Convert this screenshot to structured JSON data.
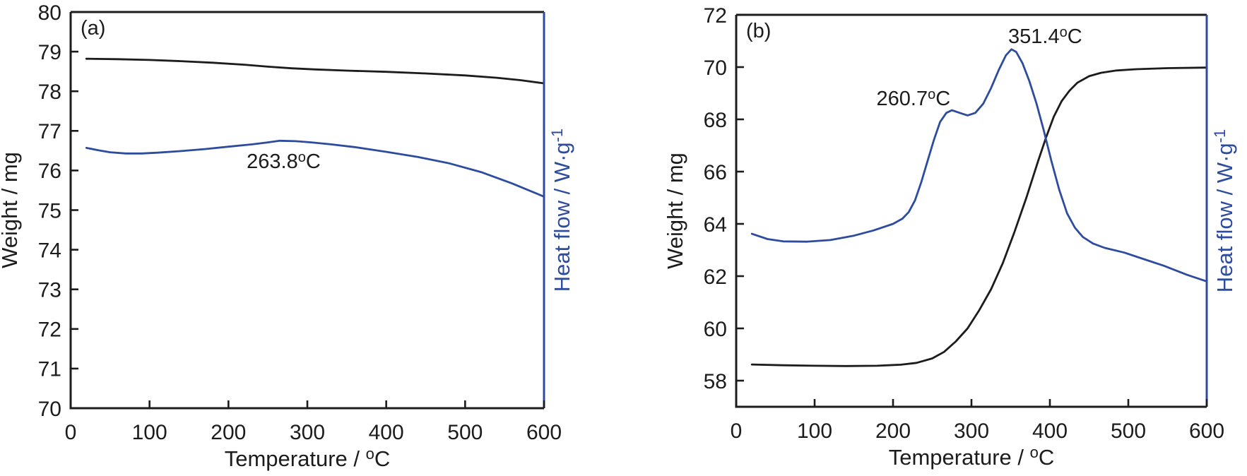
{
  "figure": {
    "background": "#ffffff",
    "text_color": "#1c1c1c",
    "accent_blue": "#2d4c9e"
  },
  "chart_data": [
    {
      "type": "line",
      "panel_label": "(a)",
      "xlabel": "Temperature / °C",
      "ylabel_left": "Weight / mg",
      "ylabel_right": "Heat flow / W·g⁻¹",
      "xlim": [
        0,
        600
      ],
      "ylim": [
        70,
        80
      ],
      "x_ticks": [
        0,
        100,
        200,
        300,
        400,
        500,
        600
      ],
      "y_ticks": [
        70,
        71,
        72,
        73,
        74,
        75,
        76,
        77,
        78,
        79,
        80
      ],
      "right_axis_ticks": "none",
      "grid": "off",
      "legend": "none",
      "series": [
        {
          "name": "TG weight curve",
          "color": "#1c1c1c",
          "axis": "left",
          "points": [
            [
              20,
              78.82
            ],
            [
              60,
              78.81
            ],
            [
              100,
              78.79
            ],
            [
              140,
              78.76
            ],
            [
              180,
              78.72
            ],
            [
              220,
              78.67
            ],
            [
              250,
              78.62
            ],
            [
              280,
              78.58
            ],
            [
              310,
              78.55
            ],
            [
              350,
              78.52
            ],
            [
              400,
              78.49
            ],
            [
              450,
              78.45
            ],
            [
              500,
              78.4
            ],
            [
              540,
              78.34
            ],
            [
              570,
              78.28
            ],
            [
              600,
              78.2
            ]
          ]
        },
        {
          "name": "DSC heat flow curve",
          "color": "#2d4c9e",
          "axis": "right",
          "points": [
            [
              20,
              76.57
            ],
            [
              35,
              76.51
            ],
            [
              50,
              76.46
            ],
            [
              70,
              76.43
            ],
            [
              90,
              76.43
            ],
            [
              110,
              76.45
            ],
            [
              140,
              76.49
            ],
            [
              170,
              76.54
            ],
            [
              200,
              76.6
            ],
            [
              230,
              76.66
            ],
            [
              250,
              76.71
            ],
            [
              265,
              76.75
            ],
            [
              285,
              76.74
            ],
            [
              305,
              76.71
            ],
            [
              330,
              76.66
            ],
            [
              360,
              76.59
            ],
            [
              400,
              76.47
            ],
            [
              440,
              76.34
            ],
            [
              480,
              76.18
            ],
            [
              520,
              75.96
            ],
            [
              560,
              75.67
            ],
            [
              600,
              75.34
            ]
          ]
        }
      ],
      "annotations": [
        {
          "text": "263.8°C",
          "x": 270,
          "y": 76.06
        }
      ]
    },
    {
      "type": "line",
      "panel_label": "(b)",
      "xlabel": "Temperature / °C",
      "ylabel_left": "Weight / mg",
      "ylabel_right": "Heat flow / W·g⁻¹",
      "xlim": [
        0,
        600
      ],
      "ylim": [
        57,
        72
      ],
      "x_ticks": [
        0,
        100,
        200,
        300,
        400,
        500,
        600
      ],
      "y_ticks": [
        58,
        60,
        62,
        64,
        66,
        68,
        70,
        72
      ],
      "right_axis_ticks": "none",
      "grid": "off",
      "legend": "none",
      "series": [
        {
          "name": "TG weight curve",
          "color": "#1c1c1c",
          "axis": "left",
          "points": [
            [
              20,
              58.62
            ],
            [
              60,
              58.59
            ],
            [
              100,
              58.57
            ],
            [
              140,
              58.56
            ],
            [
              180,
              58.57
            ],
            [
              210,
              58.61
            ],
            [
              230,
              58.68
            ],
            [
              250,
              58.85
            ],
            [
              265,
              59.1
            ],
            [
              280,
              59.5
            ],
            [
              295,
              60.0
            ],
            [
              310,
              60.7
            ],
            [
              325,
              61.5
            ],
            [
              340,
              62.5
            ],
            [
              355,
              63.7
            ],
            [
              370,
              65.0
            ],
            [
              385,
              66.4
            ],
            [
              395,
              67.3
            ],
            [
              405,
              68.1
            ],
            [
              415,
              68.7
            ],
            [
              425,
              69.1
            ],
            [
              435,
              69.4
            ],
            [
              450,
              69.65
            ],
            [
              465,
              69.78
            ],
            [
              485,
              69.87
            ],
            [
              510,
              69.92
            ],
            [
              550,
              69.96
            ],
            [
              600,
              69.98
            ]
          ]
        },
        {
          "name": "DSC heat flow curve",
          "color": "#2d4c9e",
          "axis": "right",
          "points": [
            [
              20,
              63.62
            ],
            [
              40,
              63.42
            ],
            [
              60,
              63.33
            ],
            [
              90,
              63.32
            ],
            [
              120,
              63.38
            ],
            [
              150,
              63.55
            ],
            [
              175,
              63.75
            ],
            [
              200,
              64.0
            ],
            [
              212,
              64.2
            ],
            [
              220,
              64.45
            ],
            [
              228,
              64.9
            ],
            [
              236,
              65.6
            ],
            [
              244,
              66.4
            ],
            [
              252,
              67.2
            ],
            [
              260,
              67.9
            ],
            [
              268,
              68.25
            ],
            [
              275,
              68.35
            ],
            [
              285,
              68.25
            ],
            [
              295,
              68.15
            ],
            [
              305,
              68.25
            ],
            [
              315,
              68.6
            ],
            [
              325,
              69.2
            ],
            [
              335,
              69.9
            ],
            [
              344,
              70.45
            ],
            [
              351,
              70.68
            ],
            [
              357,
              70.58
            ],
            [
              365,
              70.15
            ],
            [
              374,
              69.45
            ],
            [
              383,
              68.6
            ],
            [
              392,
              67.6
            ],
            [
              402,
              66.4
            ],
            [
              412,
              65.3
            ],
            [
              422,
              64.4
            ],
            [
              432,
              63.85
            ],
            [
              442,
              63.5
            ],
            [
              455,
              63.25
            ],
            [
              470,
              63.08
            ],
            [
              495,
              62.9
            ],
            [
              520,
              62.65
            ],
            [
              545,
              62.4
            ],
            [
              575,
              62.05
            ],
            [
              600,
              61.8
            ]
          ]
        }
      ],
      "annotations": [
        {
          "text": "260.7°C",
          "x": 226,
          "y": 68.54
        },
        {
          "text": "351.4°C",
          "x": 394,
          "y": 70.92
        }
      ]
    }
  ]
}
